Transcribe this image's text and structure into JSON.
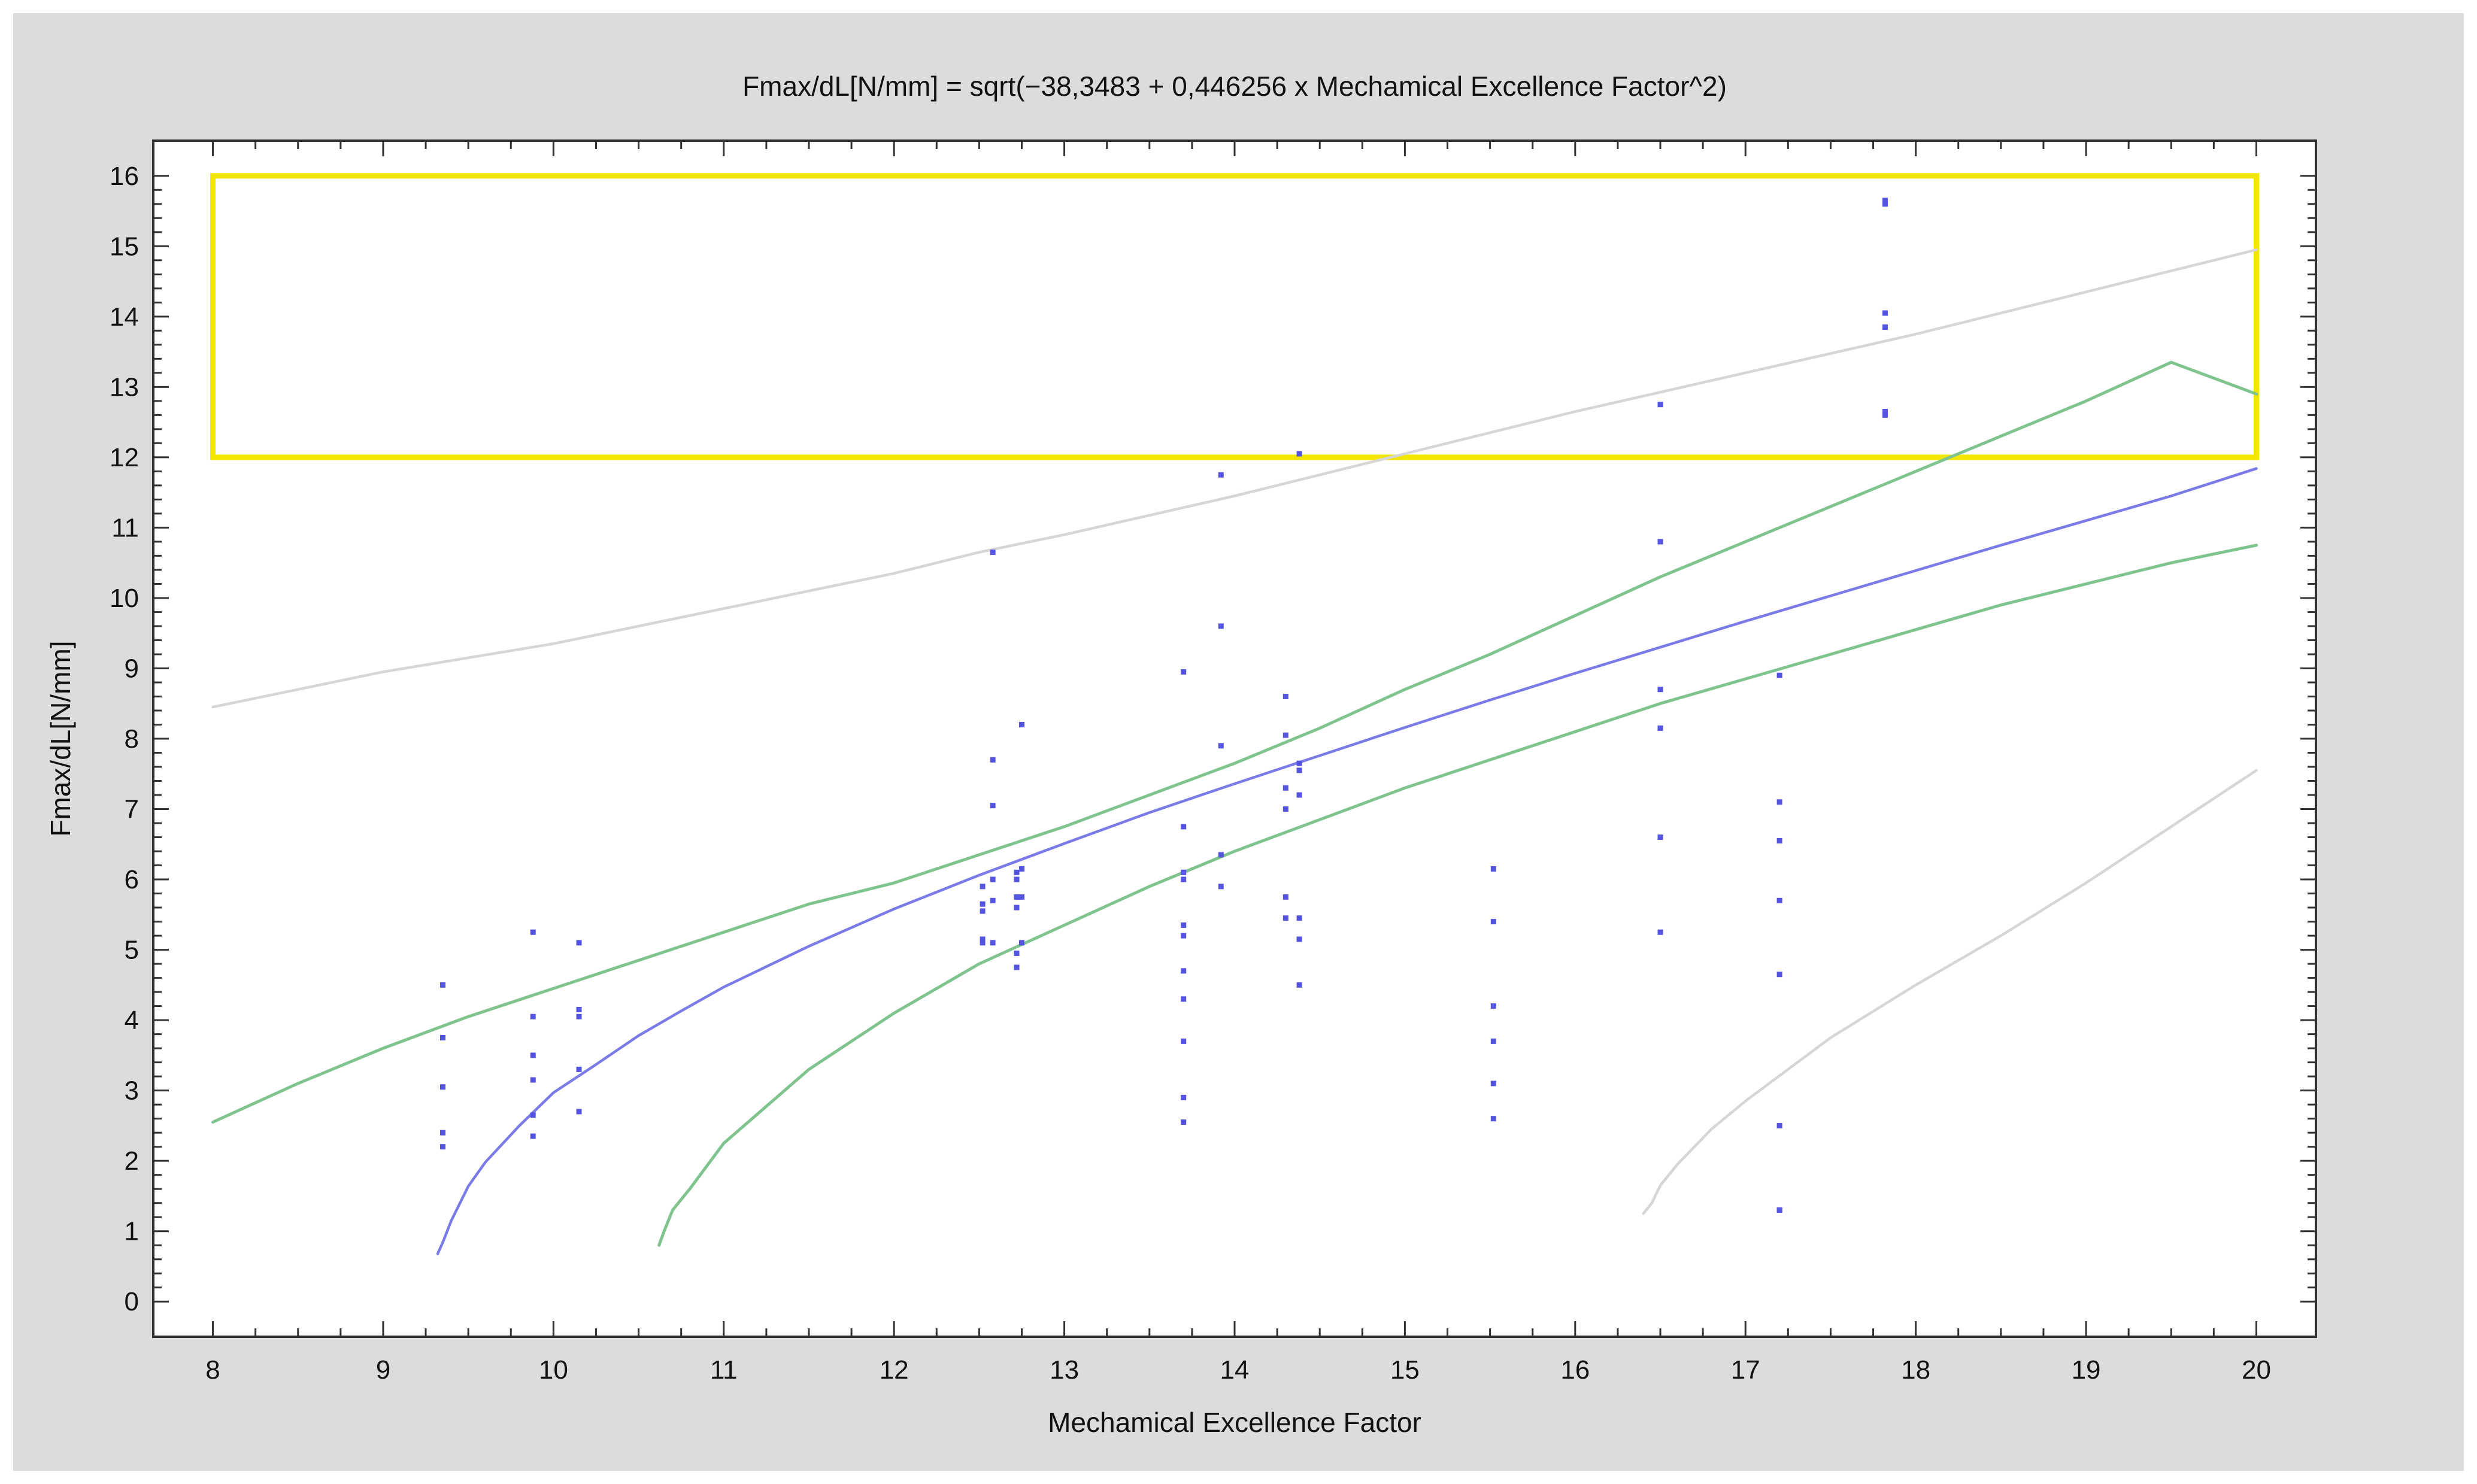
{
  "chart_data": {
    "type": "scatter",
    "title": "Fmax/dL[N/mm] = sqrt(−38,3483 + 0,446256 x Mechamical Excellence Factor^2)",
    "xlabel": "Mechamical Excellence Factor",
    "ylabel": "Fmax/dL[N/mm]",
    "xlim": [
      7.65,
      20.35
    ],
    "ylim": [
      -0.5,
      16.5
    ],
    "x_ticks": [
      8,
      9,
      10,
      11,
      12,
      13,
      14,
      15,
      16,
      17,
      18,
      19,
      20
    ],
    "y_ticks": [
      0,
      1,
      2,
      3,
      4,
      5,
      6,
      7,
      8,
      9,
      10,
      11,
      12,
      13,
      14,
      15,
      16
    ],
    "x_minor_step": 0.25,
    "y_minor_step": 0.2,
    "grid": false,
    "colors": {
      "frame": "#dcdcdc",
      "plot_bg": "#ffffff",
      "points": "#5454e0",
      "fit": "#7b7be8",
      "confidence": "#7fc48e",
      "prediction": "#d6d6d6",
      "highlight": "#f2e600"
    },
    "highlight_box": {
      "x": [
        8,
        20
      ],
      "y": [
        12,
        16
      ]
    },
    "fit_model": {
      "intercept": -38.3483,
      "slope": 0.446256
    },
    "series": [
      {
        "kind": "points",
        "x": [
          9.35,
          9.35,
          9.35,
          9.35,
          9.35,
          9.88,
          9.88,
          9.88,
          9.88,
          9.88,
          9.88,
          10.15,
          10.15,
          10.15,
          10.15,
          10.15,
          12.52,
          12.52,
          12.52,
          12.52,
          12.52,
          12.58,
          12.58,
          12.58,
          12.58,
          12.58,
          12.58,
          12.72,
          12.72,
          12.72,
          12.72,
          12.72,
          12.72,
          12.75,
          12.75,
          12.75,
          12.75,
          13.7,
          13.7,
          13.7,
          13.7,
          13.7,
          13.7,
          13.7,
          13.7,
          13.7,
          13.7,
          13.7,
          13.92,
          13.92,
          13.92,
          13.92,
          13.92,
          14.3,
          14.3,
          14.3,
          14.3,
          14.3,
          14.3,
          14.38,
          14.38,
          14.38,
          14.38,
          14.38,
          14.38,
          14.38,
          15.52,
          15.52,
          15.52,
          15.52,
          15.52,
          15.52,
          16.5,
          16.5,
          16.5,
          16.5,
          16.5,
          16.5,
          17.2,
          17.2,
          17.2,
          17.2,
          17.2,
          17.2,
          17.2,
          17.2,
          17.82,
          17.82,
          17.82,
          17.82,
          17.82,
          17.82
        ],
        "y": [
          4.5,
          3.75,
          3.05,
          2.4,
          2.2,
          5.25,
          4.05,
          3.5,
          3.15,
          2.65,
          2.35,
          5.1,
          4.15,
          4.05,
          3.3,
          2.7,
          5.9,
          5.65,
          5.55,
          5.15,
          5.1,
          10.65,
          7.7,
          7.05,
          6.0,
          5.7,
          5.1,
          6.1,
          6.0,
          5.75,
          5.6,
          4.95,
          4.75,
          8.2,
          6.15,
          5.75,
          5.1,
          8.95,
          6.75,
          6.1,
          6.0,
          5.35,
          5.2,
          4.7,
          4.3,
          3.7,
          2.9,
          2.55,
          11.75,
          9.6,
          7.9,
          6.35,
          5.9,
          8.6,
          8.05,
          7.3,
          7.0,
          5.75,
          5.45,
          12.05,
          7.65,
          7.55,
          7.2,
          5.45,
          5.15,
          4.5,
          6.15,
          5.4,
          4.2,
          3.7,
          3.1,
          2.6,
          12.75,
          10.8,
          8.7,
          8.15,
          6.6,
          5.25,
          8.9,
          7.1,
          6.55,
          5.7,
          4.65,
          2.5,
          1.3,
          1.3,
          15.65,
          15.6,
          14.05,
          13.85,
          12.65,
          12.6
        ]
      },
      {
        "kind": "fit",
        "x": [
          9.32,
          9.35,
          9.4,
          9.5,
          9.6,
          9.8,
          10.0,
          10.25,
          10.5,
          10.75,
          11.0,
          11.5,
          12.0,
          12.5,
          13.0,
          13.5,
          14.0,
          14.5,
          15.0,
          15.5,
          16.0,
          16.5,
          17.0,
          17.5,
          18.0,
          18.5,
          19.0,
          19.5,
          20.0
        ],
        "y": [
          0.68,
          0.84,
          1.15,
          1.64,
          1.98,
          2.5,
          2.97,
          3.37,
          3.78,
          4.13,
          4.47,
          5.05,
          5.58,
          6.06,
          6.51,
          6.95,
          7.36,
          7.76,
          8.16,
          8.55,
          8.93,
          9.3,
          9.67,
          10.03,
          10.39,
          10.75,
          11.1,
          11.45,
          11.84
        ]
      },
      {
        "kind": "confidence-upper",
        "x": [
          8.0,
          8.5,
          9.0,
          9.5,
          10.0,
          10.5,
          11.0,
          11.5,
          12.0,
          12.5,
          13.0,
          13.5,
          14.0,
          14.5,
          15.0,
          15.5,
          16.0,
          16.5,
          17.0,
          17.5,
          18.0,
          18.5,
          19.0,
          19.5,
          20.0
        ],
        "y": [
          2.55,
          3.1,
          3.6,
          4.05,
          4.45,
          4.85,
          5.25,
          5.65,
          5.95,
          6.35,
          6.75,
          7.2,
          7.65,
          8.15,
          8.7,
          9.2,
          9.75,
          10.3,
          10.8,
          11.3,
          11.8,
          12.3,
          12.8,
          13.35,
          12.9
        ]
      },
      {
        "kind": "confidence-lower",
        "x": [
          10.62,
          10.65,
          10.7,
          10.8,
          11.0,
          11.5,
          12.0,
          12.5,
          13.0,
          13.5,
          14.0,
          14.5,
          15.0,
          15.5,
          16.0,
          16.5,
          17.0,
          17.5,
          18.0,
          18.5,
          19.0,
          19.5,
          20.0
        ],
        "y": [
          0.8,
          1.0,
          1.3,
          1.6,
          2.25,
          3.3,
          4.1,
          4.8,
          5.35,
          5.9,
          6.4,
          6.85,
          7.3,
          7.7,
          8.1,
          8.5,
          8.85,
          9.2,
          9.55,
          9.9,
          10.2,
          10.5,
          10.75
        ]
      },
      {
        "kind": "prediction-upper",
        "x": [
          8.0,
          9.0,
          10.0,
          11.0,
          12.0,
          12.5,
          13.0,
          14.0,
          15.0,
          16.0,
          17.0,
          18.0,
          19.0,
          20.0
        ],
        "y": [
          8.45,
          8.95,
          9.35,
          9.85,
          10.35,
          10.65,
          10.9,
          11.45,
          12.05,
          12.65,
          13.2,
          13.75,
          14.35,
          14.95
        ]
      },
      {
        "kind": "prediction-lower",
        "x": [
          16.4,
          16.45,
          16.5,
          16.6,
          16.8,
          17.0,
          17.5,
          18.0,
          18.5,
          19.0,
          19.5,
          20.0
        ],
        "y": [
          1.25,
          1.4,
          1.65,
          1.95,
          2.45,
          2.85,
          3.75,
          4.5,
          5.2,
          5.95,
          6.75,
          7.55
        ]
      }
    ]
  }
}
